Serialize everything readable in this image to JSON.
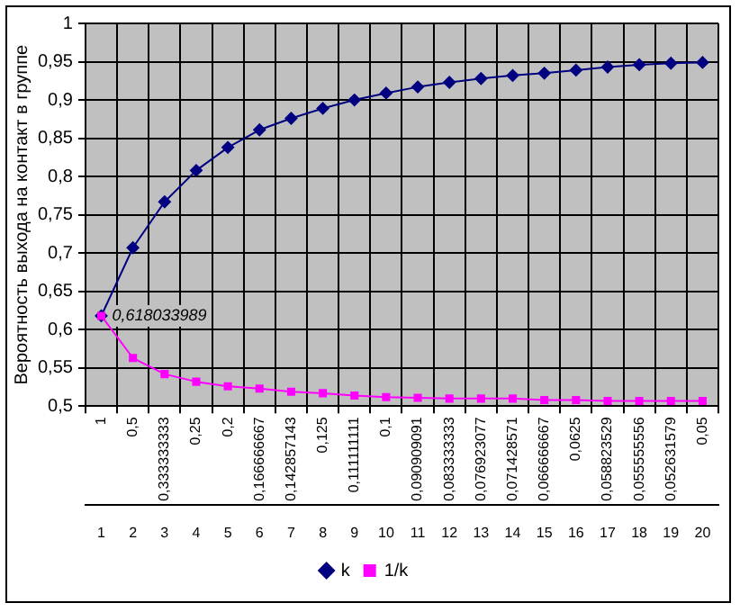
{
  "chart_data": {
    "type": "line",
    "ylabel": "Вероятность выхода на контакт в группе",
    "categories": [
      "1",
      "0,5",
      "0,333333333",
      "0,25",
      "0,2",
      "0,166666667",
      "0,142857143",
      "0,125",
      "0,111111111",
      "0,1",
      "0,090909091",
      "0,083333333",
      "0,076923077",
      "0,071428571",
      "0,066666667",
      "0,0625",
      "0,058823529",
      "0,055555556",
      "0,052631579",
      "0,05"
    ],
    "x2lim": [
      0.5,
      20.5
    ],
    "x2ticks": [
      1,
      2,
      3,
      4,
      5,
      6,
      7,
      8,
      9,
      10,
      11,
      12,
      13,
      14,
      15,
      16,
      17,
      18,
      19,
      20
    ],
    "ylim": [
      0.5,
      1
    ],
    "yticks": [
      {
        "value": 0.5,
        "label": "0,5"
      },
      {
        "value": 0.55,
        "label": "0,55"
      },
      {
        "value": 0.6,
        "label": "0,6"
      },
      {
        "value": 0.65,
        "label": "0,65"
      },
      {
        "value": 0.7,
        "label": "0,7"
      },
      {
        "value": 0.75,
        "label": "0,75"
      },
      {
        "value": 0.8,
        "label": "0,8"
      },
      {
        "value": 0.85,
        "label": "0,85"
      },
      {
        "value": 0.9,
        "label": "0,9"
      },
      {
        "value": 0.95,
        "label": "0,95"
      },
      {
        "value": 1,
        "label": "1"
      }
    ],
    "series": [
      {
        "name": "k",
        "color": "#000080",
        "marker": "diamond",
        "values": [
          0.618033989,
          0.707,
          0.767,
          0.808,
          0.838,
          0.861,
          0.876,
          0.889,
          0.9,
          0.909,
          0.917,
          0.923,
          0.928,
          0.932,
          0.935,
          0.939,
          0.943,
          0.946,
          0.948,
          0.949
        ]
      },
      {
        "name": "1/k",
        "color": "#ff00ff",
        "marker": "square",
        "values": [
          0.618033989,
          0.563,
          0.542,
          0.532,
          0.526,
          0.523,
          0.519,
          0.517,
          0.514,
          0.512,
          0.511,
          0.51,
          0.51,
          0.51,
          0.508,
          0.508,
          0.507,
          0.507,
          0.507,
          0.507
        ]
      }
    ],
    "annotations": [
      {
        "text": "0,618033989",
        "x": "1",
        "y": 0.618033989
      }
    ],
    "grid": true,
    "legend": "bottom"
  }
}
